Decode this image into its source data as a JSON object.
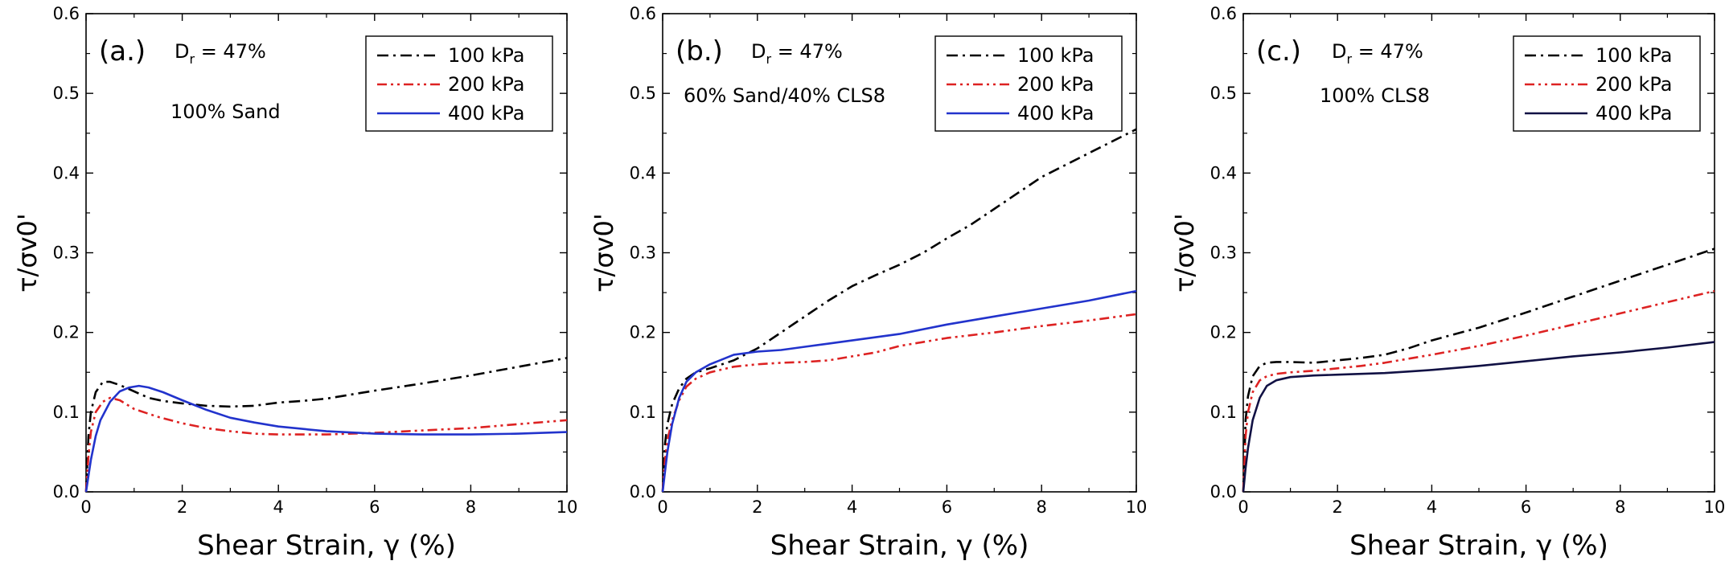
{
  "chart_data": [
    {
      "type": "line",
      "panel_label": "(a.)",
      "dr_base": "D",
      "dr_sub": "r",
      "dr_value": " = 47%",
      "annotation": "100% Sand",
      "xlabel": "Shear Strain, γ (%)",
      "ylabel": "τ/σv0'",
      "xlim": [
        0,
        10
      ],
      "ylim": [
        0,
        0.6
      ],
      "xticks": [
        "0",
        "2",
        "4",
        "6",
        "8",
        "10"
      ],
      "yticks": [
        "0.0",
        "0.1",
        "0.2",
        "0.3",
        "0.4",
        "0.5",
        "0.6"
      ],
      "legend_position": "top-right",
      "series": [
        {
          "name": "100 kPa",
          "color": "#000000",
          "dash": "dash-dot",
          "x": [
            0,
            0.05,
            0.1,
            0.2,
            0.35,
            0.5,
            0.7,
            1.0,
            1.3,
            1.6,
            2.0,
            2.5,
            3.0,
            3.5,
            4.0,
            4.5,
            5.0,
            6.0,
            7.0,
            8.0,
            9.0,
            10.0
          ],
          "y": [
            0,
            0.07,
            0.1,
            0.125,
            0.138,
            0.138,
            0.134,
            0.126,
            0.118,
            0.114,
            0.111,
            0.108,
            0.107,
            0.108,
            0.112,
            0.114,
            0.117,
            0.127,
            0.136,
            0.146,
            0.157,
            0.168
          ]
        },
        {
          "name": "200 kPa",
          "color": "#dd2222",
          "dash": "dash-dot-dot",
          "x": [
            0,
            0.05,
            0.1,
            0.2,
            0.35,
            0.5,
            0.7,
            1.0,
            1.5,
            2.0,
            2.5,
            3.0,
            3.5,
            4.0,
            5.0,
            6.0,
            7.0,
            8.0,
            9.0,
            10.0
          ],
          "y": [
            0,
            0.045,
            0.075,
            0.1,
            0.113,
            0.118,
            0.115,
            0.104,
            0.094,
            0.086,
            0.08,
            0.076,
            0.073,
            0.072,
            0.072,
            0.074,
            0.077,
            0.08,
            0.085,
            0.09
          ]
        },
        {
          "name": "400 kPa",
          "color": "#2233cc",
          "dash": "solid",
          "x": [
            0,
            0.05,
            0.1,
            0.2,
            0.3,
            0.5,
            0.7,
            0.9,
            1.1,
            1.3,
            1.6,
            2.0,
            2.5,
            3.0,
            3.5,
            4.0,
            5.0,
            6.0,
            7.0,
            8.0,
            9.0,
            10.0
          ],
          "y": [
            0,
            0.02,
            0.04,
            0.07,
            0.09,
            0.113,
            0.126,
            0.131,
            0.133,
            0.131,
            0.125,
            0.115,
            0.103,
            0.093,
            0.087,
            0.082,
            0.076,
            0.073,
            0.072,
            0.072,
            0.073,
            0.075
          ]
        }
      ]
    },
    {
      "type": "line",
      "panel_label": "(b.)",
      "dr_base": "D",
      "dr_sub": "r",
      "dr_value": " = 47%",
      "annotation": "60% Sand/40% CLS8",
      "xlabel": "Shear Strain, γ (%)",
      "ylabel": "τ/σv0'",
      "xlim": [
        0,
        10
      ],
      "ylim": [
        0,
        0.6
      ],
      "xticks": [
        "0",
        "2",
        "4",
        "6",
        "8",
        "10"
      ],
      "yticks": [
        "0.0",
        "0.1",
        "0.2",
        "0.3",
        "0.4",
        "0.5",
        "0.6"
      ],
      "legend_position": "top-right",
      "series": [
        {
          "name": "100 kPa",
          "color": "#000000",
          "dash": "dash-dot",
          "x": [
            0,
            0.05,
            0.1,
            0.2,
            0.35,
            0.5,
            0.7,
            1.0,
            1.5,
            2.0,
            2.5,
            3.0,
            3.5,
            4.0,
            4.5,
            5.0,
            5.5,
            6.0,
            6.5,
            7.0,
            7.5,
            8.0,
            8.5,
            9.0,
            9.5,
            10.0
          ],
          "y": [
            0,
            0.06,
            0.085,
            0.11,
            0.13,
            0.142,
            0.15,
            0.155,
            0.165,
            0.18,
            0.2,
            0.22,
            0.24,
            0.258,
            0.272,
            0.285,
            0.3,
            0.318,
            0.335,
            0.355,
            0.375,
            0.395,
            0.41,
            0.425,
            0.44,
            0.455
          ]
        },
        {
          "name": "200 kPa",
          "color": "#dd2222",
          "dash": "dash-dot-dot",
          "x": [
            0,
            0.05,
            0.1,
            0.2,
            0.35,
            0.5,
            0.7,
            1.0,
            1.5,
            2.0,
            2.5,
            3.0,
            3.5,
            4.0,
            4.5,
            5.0,
            6.0,
            7.0,
            8.0,
            9.0,
            10.0
          ],
          "y": [
            0,
            0.04,
            0.065,
            0.09,
            0.115,
            0.132,
            0.142,
            0.15,
            0.157,
            0.16,
            0.162,
            0.163,
            0.165,
            0.17,
            0.175,
            0.183,
            0.193,
            0.2,
            0.208,
            0.215,
            0.223
          ]
        },
        {
          "name": "400 kPa",
          "color": "#2233cc",
          "dash": "solid",
          "x": [
            0,
            0.05,
            0.1,
            0.2,
            0.35,
            0.5,
            0.7,
            1.0,
            1.5,
            2.0,
            2.5,
            3.0,
            3.5,
            4.0,
            5.0,
            6.0,
            7.0,
            8.0,
            9.0,
            10.0
          ],
          "y": [
            0,
            0.025,
            0.05,
            0.085,
            0.118,
            0.138,
            0.15,
            0.16,
            0.172,
            0.176,
            0.178,
            0.182,
            0.186,
            0.19,
            0.198,
            0.21,
            0.22,
            0.23,
            0.24,
            0.252
          ]
        }
      ]
    },
    {
      "type": "line",
      "panel_label": "(c.)",
      "dr_base": "D",
      "dr_sub": "r",
      "dr_value": " = 47%",
      "annotation": "100% CLS8",
      "xlabel": "Shear Strain, γ (%)",
      "ylabel": "τ/σv0'",
      "xlim": [
        0,
        10
      ],
      "ylim": [
        0,
        0.6
      ],
      "xticks": [
        "0",
        "2",
        "4",
        "6",
        "8",
        "10"
      ],
      "yticks": [
        "0.0",
        "0.1",
        "0.2",
        "0.3",
        "0.4",
        "0.5",
        "0.6"
      ],
      "legend_position": "top-right",
      "series": [
        {
          "name": "100 kPa",
          "color": "#000000",
          "dash": "dash-dot",
          "x": [
            0,
            0.05,
            0.1,
            0.2,
            0.35,
            0.5,
            0.7,
            1.0,
            1.5,
            2.0,
            2.5,
            3.0,
            3.5,
            4.0,
            4.5,
            5.0,
            6.0,
            7.0,
            8.0,
            9.0,
            10.0
          ],
          "y": [
            0,
            0.09,
            0.12,
            0.145,
            0.158,
            0.162,
            0.163,
            0.163,
            0.162,
            0.165,
            0.168,
            0.172,
            0.18,
            0.19,
            0.198,
            0.206,
            0.225,
            0.245,
            0.265,
            0.285,
            0.305
          ]
        },
        {
          "name": "200 kPa",
          "color": "#dd2222",
          "dash": "dash-dot-dot",
          "x": [
            0,
            0.05,
            0.1,
            0.2,
            0.35,
            0.5,
            0.7,
            1.0,
            1.5,
            2.0,
            2.5,
            3.0,
            3.5,
            4.0,
            5.0,
            6.0,
            7.0,
            8.0,
            9.0,
            10.0
          ],
          "y": [
            0,
            0.07,
            0.1,
            0.125,
            0.14,
            0.145,
            0.148,
            0.15,
            0.152,
            0.155,
            0.158,
            0.162,
            0.167,
            0.172,
            0.183,
            0.196,
            0.21,
            0.224,
            0.238,
            0.252
          ]
        },
        {
          "name": "400 kPa",
          "color": "#111144",
          "dash": "solid",
          "x": [
            0,
            0.05,
            0.1,
            0.2,
            0.35,
            0.5,
            0.7,
            1.0,
            1.5,
            2.0,
            2.5,
            3.0,
            3.5,
            4.0,
            5.0,
            6.0,
            7.0,
            8.0,
            9.0,
            10.0
          ],
          "y": [
            0,
            0.03,
            0.055,
            0.09,
            0.118,
            0.133,
            0.14,
            0.144,
            0.146,
            0.147,
            0.148,
            0.149,
            0.151,
            0.153,
            0.158,
            0.164,
            0.17,
            0.175,
            0.181,
            0.188
          ]
        }
      ]
    }
  ]
}
